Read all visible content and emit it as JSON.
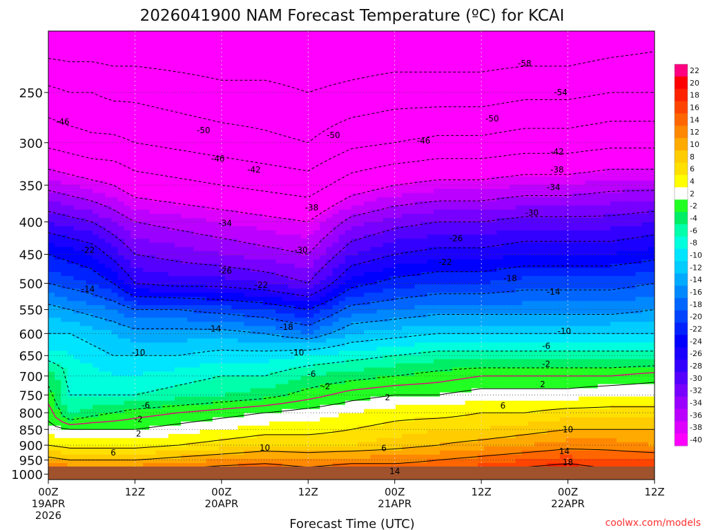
{
  "title": "2026041900 NAM Forecast Temperature (ºC) for KCAI",
  "xlabel": "Forecast Time (UTC)",
  "credit": "coolwx.com/models",
  "colors": {
    "ground": "#a0522d",
    "freezing_line": "#e6007e",
    "text": "#000000",
    "credit": "#ff3030"
  },
  "chart_data": {
    "type": "heatmap",
    "title": "2026041900 NAM Forecast Temperature (ºC) for KCAI",
    "xlabel": "Forecast Time (UTC)",
    "ylabel": "",
    "y_scale": "log-pressure",
    "ylim": [
      1020,
      200
    ],
    "xlim": [
      0,
      84
    ],
    "x_ticks": [
      {
        "hour": 0,
        "label": "00Z",
        "date": "19APR",
        "year": "2026"
      },
      {
        "hour": 12,
        "label": "12Z"
      },
      {
        "hour": 24,
        "label": "00Z",
        "date": "20APR"
      },
      {
        "hour": 36,
        "label": "12Z"
      },
      {
        "hour": 48,
        "label": "00Z",
        "date": "21APR"
      },
      {
        "hour": 60,
        "label": "12Z"
      },
      {
        "hour": 72,
        "label": "00Z",
        "date": "22APR"
      },
      {
        "hour": 84,
        "label": "12Z"
      }
    ],
    "y_ticks": [
      250,
      300,
      350,
      400,
      450,
      500,
      550,
      600,
      650,
      700,
      750,
      800,
      850,
      900,
      950,
      1000
    ],
    "grid": true,
    "colorbar": {
      "placement": "right",
      "ticks": [
        22,
        20,
        18,
        16,
        14,
        12,
        10,
        8,
        6,
        4,
        2,
        -2,
        -4,
        -6,
        -8,
        -10,
        -12,
        -14,
        -16,
        -18,
        -20,
        -22,
        -24,
        -26,
        -28,
        -30,
        -32,
        -34,
        -36,
        -38,
        -40
      ],
      "colors": [
        "#ff0080",
        "#ff0000",
        "#ff2200",
        "#ff4400",
        "#ff6600",
        "#ff8800",
        "#ffaa00",
        "#ffcc00",
        "#ffe000",
        "#ffff00",
        "#ffffff",
        "#22ff22",
        "#00ee66",
        "#00ffaa",
        "#00ffdd",
        "#00e5ff",
        "#00ccff",
        "#00aaff",
        "#0088ff",
        "#0066ff",
        "#0044ff",
        "#0022ff",
        "#0000ff",
        "#1a00ff",
        "#3300ff",
        "#5500ff",
        "#7700ff",
        "#9900ff",
        "#bb00ff",
        "#dd00ff",
        "#ff00ff"
      ]
    },
    "profile_pressures": [
      1020,
      1000,
      950,
      900,
      850,
      800,
      750,
      700,
      650,
      600,
      550,
      500,
      450,
      400,
      350,
      300,
      250,
      200
    ],
    "profiles": [
      {
        "hour": 0,
        "temps": [
          17,
          16,
          11,
          6,
          3,
          1,
          -1,
          -3,
          -7,
          -10,
          -13,
          -18,
          -22,
          -28,
          -35,
          -43,
          -49,
          -58
        ]
      },
      {
        "hour": 3,
        "temps": [
          16,
          15,
          10,
          5,
          2,
          -5,
          -6,
          -6,
          -8,
          -10,
          -14,
          -19,
          -23,
          -29,
          -36,
          -44,
          -50,
          -58
        ]
      },
      {
        "hour": 6,
        "temps": [
          16,
          15,
          10,
          5,
          2,
          -3,
          -6,
          -7,
          -9,
          -11,
          -15,
          -20,
          -24,
          -30,
          -37,
          -45,
          -50,
          -58
        ]
      },
      {
        "hour": 9,
        "temps": [
          16,
          15,
          10,
          5,
          2,
          -2,
          -6,
          -8,
          -10,
          -12,
          -16,
          -22,
          -27,
          -32,
          -38,
          -45,
          -51,
          -58
        ]
      },
      {
        "hour": 12,
        "temps": [
          16,
          15,
          10,
          5,
          2,
          -1,
          -6,
          -8,
          -10,
          -13,
          -18,
          -26,
          -30,
          -34,
          -40,
          -46,
          -51,
          -58
        ]
      },
      {
        "hour": 18,
        "temps": [
          17,
          16,
          11,
          6,
          3,
          0,
          -5,
          -7,
          -10,
          -13,
          -18,
          -27,
          -31,
          -35,
          -41,
          -47,
          -52,
          -58
        ]
      },
      {
        "hour": 24,
        "temps": [
          18,
          17,
          12,
          7,
          4,
          1,
          -4,
          -6,
          -9,
          -13,
          -19,
          -27,
          -32,
          -36,
          -42,
          -48,
          -53,
          -58
        ]
      },
      {
        "hour": 30,
        "temps": [
          18,
          17,
          13,
          8,
          5,
          2,
          -3,
          -6,
          -9,
          -14,
          -20,
          -28,
          -33,
          -37,
          -43,
          -49,
          -53,
          -58
        ]
      },
      {
        "hour": 36,
        "temps": [
          17,
          16,
          12,
          8,
          5,
          3,
          -1,
          -4,
          -8,
          -16,
          -22,
          -30,
          -34,
          -38,
          -44,
          -50,
          -54,
          -58
        ]
      },
      {
        "hour": 42,
        "temps": [
          18,
          17,
          13,
          8,
          6,
          4,
          1,
          -3,
          -7,
          -12,
          -17,
          -23,
          -28,
          -33,
          -40,
          -47,
          -53,
          -58
        ]
      },
      {
        "hour": 48,
        "temps": [
          18,
          17,
          13,
          9,
          7,
          5,
          2,
          -2,
          -6,
          -11,
          -16,
          -21,
          -26,
          -31,
          -38,
          -46,
          -52,
          -58
        ]
      },
      {
        "hour": 54,
        "temps": [
          18,
          17,
          14,
          10,
          8,
          5,
          2,
          -1,
          -5,
          -10,
          -15,
          -20,
          -25,
          -30,
          -37,
          -45,
          -52,
          -58
        ]
      },
      {
        "hour": 60,
        "temps": [
          19,
          18,
          15,
          11,
          8,
          6,
          3,
          0,
          -5,
          -10,
          -15,
          -20,
          -25,
          -30,
          -37,
          -45,
          -52,
          -58
        ]
      },
      {
        "hour": 66,
        "temps": [
          21,
          20,
          16,
          12,
          9,
          6,
          3,
          0,
          -5,
          -10,
          -15,
          -19,
          -24,
          -29,
          -36,
          -44,
          -51,
          -58
        ]
      },
      {
        "hour": 72,
        "temps": [
          22,
          21,
          17,
          13,
          10,
          7,
          3,
          0,
          -5,
          -10,
          -15,
          -19,
          -24,
          -29,
          -36,
          -44,
          -51,
          -58
        ]
      },
      {
        "hour": 78,
        "temps": [
          20,
          19,
          16,
          13,
          10,
          7,
          4,
          0,
          -5,
          -10,
          -15,
          -19,
          -24,
          -29,
          -35,
          -43,
          -50,
          -57
        ]
      },
      {
        "hour": 84,
        "temps": [
          20,
          19,
          16,
          12,
          10,
          7,
          4,
          1,
          -5,
          -10,
          -14,
          -18,
          -23,
          -28,
          -35,
          -43,
          -50,
          -56
        ]
      }
    ],
    "contour_labels": [
      {
        "text": "-58",
        "hour": 66,
        "p": 225
      },
      {
        "text": "-54",
        "hour": 71,
        "p": 250
      },
      {
        "text": "-46",
        "hour": 2,
        "p": 278
      },
      {
        "text": "-50",
        "hour": 21.5,
        "p": 287
      },
      {
        "text": "-50",
        "hour": 39.5,
        "p": 292
      },
      {
        "text": "-50",
        "hour": 61.5,
        "p": 275
      },
      {
        "text": "-46",
        "hour": 52,
        "p": 298
      },
      {
        "text": "-46",
        "hour": 23.5,
        "p": 318
      },
      {
        "text": "-42",
        "hour": 28.5,
        "p": 331
      },
      {
        "text": "-42",
        "hour": 70.5,
        "p": 310
      },
      {
        "text": "-38",
        "hour": 70.5,
        "p": 331
      },
      {
        "text": "-38",
        "hour": 36.5,
        "p": 380
      },
      {
        "text": "-34",
        "hour": 70,
        "p": 353
      },
      {
        "text": "-34",
        "hour": 24.5,
        "p": 402
      },
      {
        "text": "-30",
        "hour": 67,
        "p": 387
      },
      {
        "text": "-30",
        "hour": 35,
        "p": 443
      },
      {
        "text": "-26",
        "hour": 56.5,
        "p": 425
      },
      {
        "text": "-26",
        "hour": 24.5,
        "p": 478
      },
      {
        "text": "-22",
        "hour": 5.5,
        "p": 443
      },
      {
        "text": "-22",
        "hour": 55,
        "p": 463
      },
      {
        "text": "-22",
        "hour": 29.5,
        "p": 503
      },
      {
        "text": "-18",
        "hour": 64,
        "p": 491
      },
      {
        "text": "-18",
        "hour": 33,
        "p": 586
      },
      {
        "text": "-14",
        "hour": 5.5,
        "p": 511
      },
      {
        "text": "-14",
        "hour": 70,
        "p": 516
      },
      {
        "text": "-14",
        "hour": 23,
        "p": 590
      },
      {
        "text": "-10",
        "hour": 71.5,
        "p": 595
      },
      {
        "text": "-10",
        "hour": 12.5,
        "p": 643
      },
      {
        "text": "-10",
        "hour": 34.5,
        "p": 643
      },
      {
        "text": "-6",
        "hour": 69,
        "p": 628
      },
      {
        "text": "-6",
        "hour": 36.5,
        "p": 695
      },
      {
        "text": "-6",
        "hour": 13.5,
        "p": 779
      },
      {
        "text": "-2",
        "hour": 69,
        "p": 670
      },
      {
        "text": "-2",
        "hour": 38.5,
        "p": 727
      },
      {
        "text": "-2",
        "hour": 12.5,
        "p": 819
      },
      {
        "text": "2",
        "hour": 68.5,
        "p": 722
      },
      {
        "text": "2",
        "hour": 47,
        "p": 757
      },
      {
        "text": "2",
        "hour": 12.5,
        "p": 863
      },
      {
        "text": "6",
        "hour": 63,
        "p": 780
      },
      {
        "text": "6",
        "hour": 46.5,
        "p": 910
      },
      {
        "text": "6",
        "hour": 9,
        "p": 925
      },
      {
        "text": "10",
        "hour": 72,
        "p": 850
      },
      {
        "text": "10",
        "hour": 30,
        "p": 909
      },
      {
        "text": "14",
        "hour": 71.5,
        "p": 920
      },
      {
        "text": "14",
        "hour": 48,
        "p": 990
      },
      {
        "text": "18",
        "hour": 72,
        "p": 958
      }
    ]
  }
}
